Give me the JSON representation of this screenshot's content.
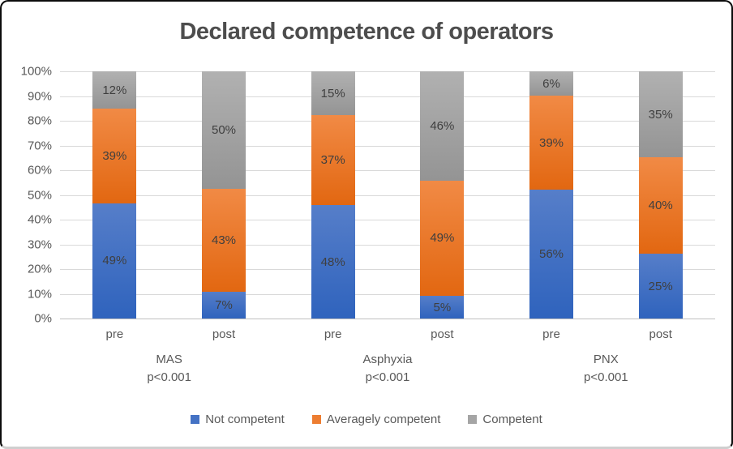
{
  "chart_data": {
    "type": "bar",
    "stacked": true,
    "title": "Declared competence of operators",
    "categories": [
      "pre",
      "post",
      "pre",
      "post",
      "pre",
      "post"
    ],
    "groups": [
      {
        "name": "MAS",
        "pvalue": "p<0.001"
      },
      {
        "name": "Asphyxia",
        "pvalue": "p<0.001"
      },
      {
        "name": "PNX",
        "pvalue": "p<0.001"
      }
    ],
    "series": [
      {
        "name": "Not competent",
        "color": "#4472C4",
        "fill_top": "#567EC9",
        "fill_bottom": "#2F63BD",
        "values": [
          49,
          7,
          48,
          5,
          56,
          25
        ]
      },
      {
        "name": "Averagely competent",
        "color": "#ED7D31",
        "fill_top": "#F18A45",
        "fill_bottom": "#E26711",
        "values": [
          39,
          43,
          37,
          49,
          39,
          40
        ]
      },
      {
        "name": "Competent",
        "color": "#A5A5A5",
        "fill_top": "#B1B1B1",
        "fill_bottom": "#949494",
        "values": [
          12,
          50,
          15,
          46,
          6,
          35
        ]
      }
    ],
    "data_label_suffix": "%",
    "y_axis": {
      "min": 0,
      "max": 100,
      "step": 10,
      "ticks": [
        "100%",
        "90%",
        "80%",
        "70%",
        "60%",
        "50%",
        "40%",
        "30%",
        "20%",
        "10%",
        "0%"
      ]
    },
    "legend_position": "bottom",
    "grid": true
  },
  "colors": {
    "title_text": "#4d4d4d",
    "axis_text": "#595959",
    "data_label_text": "#3f3f3f",
    "gridline": "#d9d9d9",
    "axis_line": "#bfbfbf",
    "frame_border": "#0b0b0b"
  }
}
